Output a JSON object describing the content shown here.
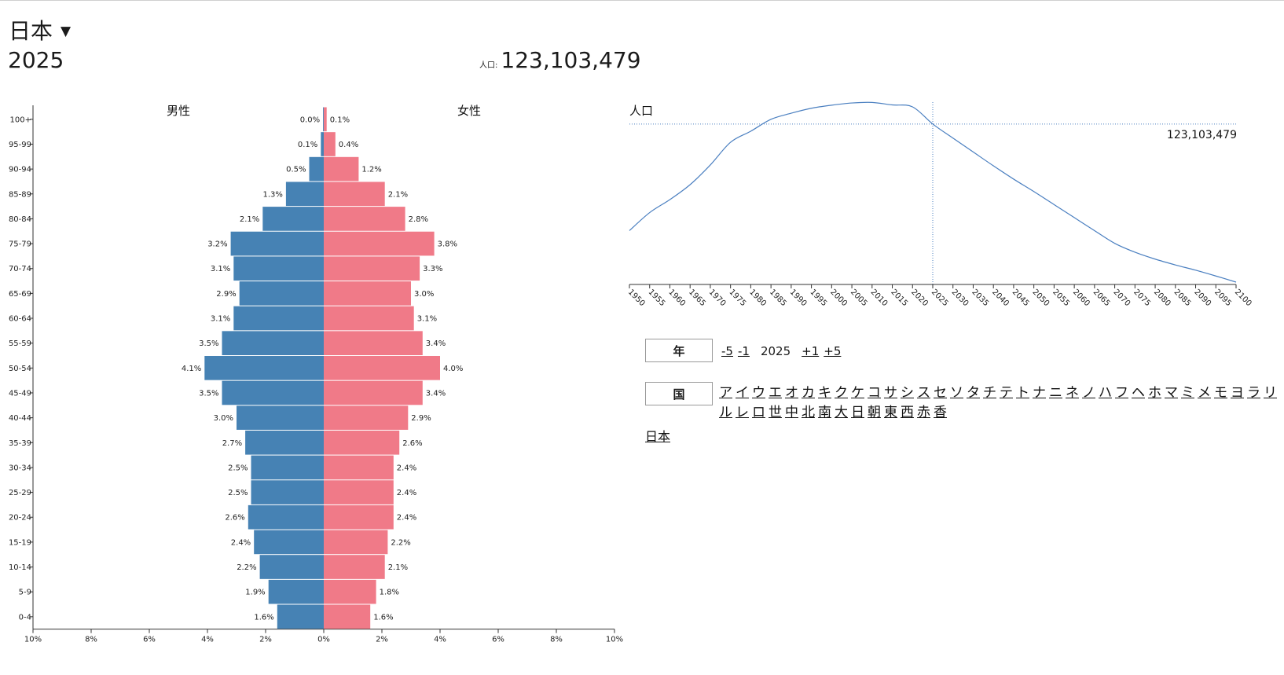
{
  "header": {
    "country": "日本",
    "year": "2025",
    "population_label": "人口:",
    "population_value": "123,103,479"
  },
  "colors": {
    "male": "#4682b4",
    "female": "#f07a88",
    "line": "#4a7fc0"
  },
  "chart_data": [
    {
      "type": "bar",
      "subtype": "population-pyramid",
      "title_left": "男性",
      "title_right": "女性",
      "categories": [
        "100+",
        "95-99",
        "90-94",
        "85-89",
        "80-84",
        "75-79",
        "70-74",
        "65-69",
        "60-64",
        "55-59",
        "50-54",
        "45-49",
        "40-44",
        "35-39",
        "30-34",
        "25-29",
        "20-24",
        "15-19",
        "10-14",
        "5-9",
        "0-4"
      ],
      "series": [
        {
          "name": "男性",
          "values": [
            0.0,
            0.1,
            0.5,
            1.3,
            2.1,
            3.2,
            3.1,
            2.9,
            3.1,
            3.5,
            4.1,
            3.5,
            3.0,
            2.7,
            2.5,
            2.5,
            2.6,
            2.4,
            2.2,
            1.9,
            1.6
          ]
        },
        {
          "name": "女性",
          "values": [
            0.1,
            0.4,
            1.2,
            2.1,
            2.8,
            3.8,
            3.3,
            3.0,
            3.1,
            3.4,
            4.0,
            3.4,
            2.9,
            2.6,
            2.4,
            2.4,
            2.4,
            2.2,
            2.1,
            1.8,
            1.6
          ]
        }
      ],
      "value_labels_male": [
        "0.0%",
        "0.1%",
        "0.5%",
        "1.3%",
        "2.1%",
        "3.2%",
        "3.1%",
        "2.9%",
        "3.1%",
        "3.5%",
        "4.1%",
        "3.5%",
        "3.0%",
        "2.7%",
        "2.5%",
        "2.5%",
        "2.6%",
        "2.4%",
        "2.2%",
        "1.9%",
        "1.6%"
      ],
      "value_labels_female": [
        "0.1%",
        "0.4%",
        "1.2%",
        "2.1%",
        "2.8%",
        "3.8%",
        "3.3%",
        "3.0%",
        "3.1%",
        "3.4%",
        "4.0%",
        "3.4%",
        "2.9%",
        "2.6%",
        "2.4%",
        "2.4%",
        "2.4%",
        "2.2%",
        "2.1%",
        "1.8%",
        "1.6%"
      ],
      "x_ticks_values": [
        -10,
        -8,
        -6,
        -4,
        -2,
        0,
        2,
        4,
        6,
        8,
        10
      ],
      "x_tick_labels": [
        "10%",
        "8%",
        "6%",
        "4%",
        "2%",
        "0%",
        "2%",
        "4%",
        "6%",
        "8%",
        "10%"
      ],
      "xlim": [
        -10,
        10
      ]
    },
    {
      "type": "line",
      "title": "人口",
      "x": [
        1950,
        1955,
        1960,
        1965,
        1970,
        1975,
        1980,
        1985,
        1990,
        1995,
        2000,
        2005,
        2010,
        2015,
        2020,
        2025,
        2030,
        2035,
        2040,
        2045,
        2050,
        2055,
        2060,
        2065,
        2070,
        2075,
        2080,
        2085,
        2090,
        2095,
        2100
      ],
      "values": [
        84.6,
        91.1,
        95.8,
        101.2,
        108.3,
        116.5,
        120.5,
        124.8,
        127.0,
        128.8,
        129.9,
        130.7,
        130.9,
        130.0,
        129.3,
        123.1,
        118.0,
        113.0,
        108.0,
        103.2,
        98.7,
        94.0,
        89.3,
        84.6,
        80.0,
        76.8,
        74.3,
        72.2,
        70.3,
        68.2,
        66.0
      ],
      "y_unit": "millions",
      "ylim": [
        66,
        131
      ],
      "x_tick_labels": [
        "1950",
        "1955",
        "1960",
        "1965",
        "1970",
        "1975",
        "1980",
        "1985",
        "1990",
        "1995",
        "2000",
        "2005",
        "2010",
        "2015",
        "2020",
        "2025",
        "2030",
        "2035",
        "2040",
        "2045",
        "2050",
        "2055",
        "2060",
        "2065",
        "2070",
        "2075",
        "2080",
        "2085",
        "2090",
        "2095",
        "2100"
      ],
      "marker_year": 2025,
      "marker_value": 123.1,
      "marker_label": "123,103,479"
    }
  ],
  "controls": {
    "year_label": "年",
    "year_minus5": "-5",
    "year_minus1": "-1",
    "year_current": "2025",
    "year_plus1": "+1",
    "year_plus5": "+5",
    "country_label": "国",
    "kana": [
      "ア",
      "イ",
      "ウ",
      "エ",
      "オ",
      "カ",
      "キ",
      "ク",
      "ケ",
      "コ",
      "サ",
      "シ",
      "ス",
      "セ",
      "ソ",
      "タ",
      "チ",
      "テ",
      "ト",
      "ナ",
      "ニ",
      "ネ",
      "ノ",
      "ハ",
      "フ",
      "ヘ",
      "ホ",
      "マ",
      "ミ",
      "メ",
      "モ",
      "ヨ",
      "ラ",
      "リ",
      "ル",
      "レ",
      "ロ",
      "世",
      "中",
      "北",
      "南",
      "大",
      "日",
      "朝",
      "東",
      "西",
      "赤",
      "香"
    ],
    "selected_country": "日本"
  }
}
